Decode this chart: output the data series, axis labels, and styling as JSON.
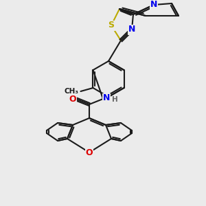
{
  "background_color": "#ebebeb",
  "bond_color": "#1a1a1a",
  "atom_colors": {
    "N": "#0000ee",
    "O": "#dd0000",
    "S": "#bbaa00",
    "C": "#1a1a1a",
    "H": "#666666"
  },
  "figsize": [
    3.0,
    3.0
  ],
  "dpi": 100
}
